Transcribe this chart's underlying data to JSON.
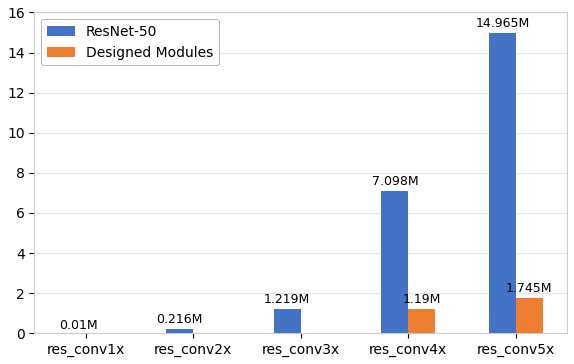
{
  "categories": [
    "res_conv1x",
    "res_conv2x",
    "res_conv3x",
    "res_conv4x",
    "res_conv5x"
  ],
  "resnet50_values": [
    0.01,
    0.216,
    1.219,
    7.098,
    14.965
  ],
  "designed_values": [
    0.0,
    0.0,
    0.0,
    1.19,
    1.745
  ],
  "resnet50_labels": [
    "0.01M",
    "0.216M",
    "1.219M",
    "7.098M",
    "14.965M"
  ],
  "designed_labels": [
    "",
    "",
    "",
    "1.19M",
    "1.745M"
  ],
  "resnet50_color": "#4472c4",
  "designed_color": "#ed7d31",
  "legend_labels": [
    "ResNet-50",
    "Designed Modules"
  ],
  "ylim": [
    0,
    16
  ],
  "yticks": [
    0,
    2,
    4,
    6,
    8,
    10,
    12,
    14,
    16
  ],
  "bar_width": 0.25,
  "figsize": [
    5.74,
    3.64
  ],
  "dpi": 100
}
